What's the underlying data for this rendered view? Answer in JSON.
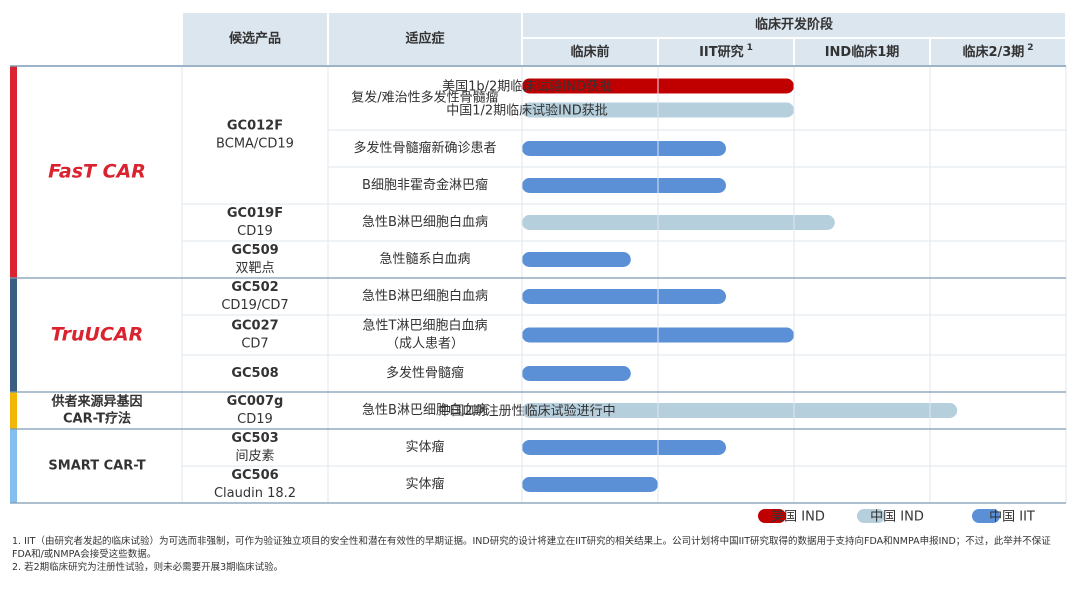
{
  "header": {
    "candidate": "候选产品",
    "indication": "适应症",
    "clinical_stage": "临床开发阶段",
    "stages": [
      {
        "name": "临床前"
      },
      {
        "name": "IIT研究",
        "note": "1"
      },
      {
        "name": "IND临床1期"
      },
      {
        "name": "临床2/3期",
        "note": "2"
      }
    ]
  },
  "xlim": [
    0,
    4
  ],
  "legend": [
    {
      "name": "美国 IND",
      "color": "#c00000"
    },
    {
      "name": "中国 IND",
      "color": "#b5cfdc"
    },
    {
      "name": "中国 IIT",
      "color": "#5b8fd6"
    }
  ],
  "platforms": [
    {
      "name": [
        "FasT CAR"
      ],
      "color": "#d9232e",
      "logo": true,
      "products": [
        {
          "name": "GC012F",
          "target": "BCMA/CD19",
          "indications": [
            {
              "name": "复发/难治性多发性骨髓瘤",
              "bars": [
                {
                  "series": 0,
                  "progress": 2,
                  "label": "美国1b/2期临床试验IND获批"
                },
                {
                  "series": 1,
                  "progress": 2,
                  "label": "中国1/2期临床试验IND获批"
                }
              ]
            },
            {
              "name": "多发性骨髓瘤新确诊患者",
              "bars": [
                {
                  "series": 2,
                  "progress": 1.5
                }
              ]
            },
            {
              "name": "B细胞非霍奇金淋巴瘤",
              "bars": [
                {
                  "series": 2,
                  "progress": 1.5
                }
              ]
            }
          ]
        },
        {
          "name": "GC019F",
          "target": "CD19",
          "indications": [
            {
              "name": "急性B淋巴细胞白血病",
              "bars": [
                {
                  "series": 1,
                  "progress": 2.3
                }
              ]
            }
          ]
        },
        {
          "name": "GC509",
          "target": "双靶点",
          "indications": [
            {
              "name": "急性髓系白血病",
              "bars": [
                {
                  "series": 2,
                  "progress": 0.8
                }
              ]
            }
          ]
        }
      ]
    },
    {
      "name": [
        "TruUCAR"
      ],
      "color": "#3b5f82",
      "logo": true,
      "products": [
        {
          "name": "GC502",
          "target": "CD19/CD7",
          "indications": [
            {
              "name": "急性B淋巴细胞白血病",
              "bars": [
                {
                  "series": 2,
                  "progress": 1.5
                }
              ]
            }
          ]
        },
        {
          "name": "GC027",
          "target": "CD7",
          "indications": [
            {
              "name": "急性T淋巴细胞白血病",
              "note": "（成人患者）",
              "bars": [
                {
                  "series": 2,
                  "progress": 2
                }
              ]
            }
          ]
        },
        {
          "name": "GC508",
          "indications": [
            {
              "name": "多发性骨髓瘤",
              "bars": [
                {
                  "series": 2,
                  "progress": 0.8
                }
              ]
            }
          ]
        }
      ]
    },
    {
      "name": [
        "供者来源异基因",
        "CAR-T疗法"
      ],
      "color": "#f2b705",
      "logo": false,
      "products": [
        {
          "name": "GC007g",
          "target": "CD19",
          "indications": [
            {
              "name": "急性B淋巴细胞白血病",
              "bars": [
                {
                  "series": 1,
                  "progress": 3.2,
                  "label": "中国2期注册性临床试验进行中"
                }
              ]
            }
          ]
        }
      ]
    },
    {
      "name": [
        "SMART CAR-T"
      ],
      "color": "#85bff0",
      "logo": false,
      "products": [
        {
          "name": "GC503",
          "target": "间皮素",
          "indications": [
            {
              "name": "实体瘤",
              "bars": [
                {
                  "series": 2,
                  "progress": 1.5
                }
              ]
            }
          ]
        },
        {
          "name": "GC506",
          "target": "Claudin 18.2",
          "indications": [
            {
              "name": "实体瘤",
              "bars": [
                {
                  "series": 2,
                  "progress": 1
                }
              ]
            }
          ]
        }
      ]
    }
  ],
  "footnotes": [
    "1. IIT（由研究者发起的临床试验）为可选而非强制，可作为验证独立项目的安全性和潜在有效性的早期证据。IND研究的设计将建立在IIT研究的相关结果上。公司计划将中国IIT研究取得的数据用于支持向FDA和NMPA申报IND；不过，此举并不保证FDA和/或NMPA会接受这些数据。",
    "2. 若2期临床研究为注册性试验，则未必需要开展3期临床试验。"
  ]
}
